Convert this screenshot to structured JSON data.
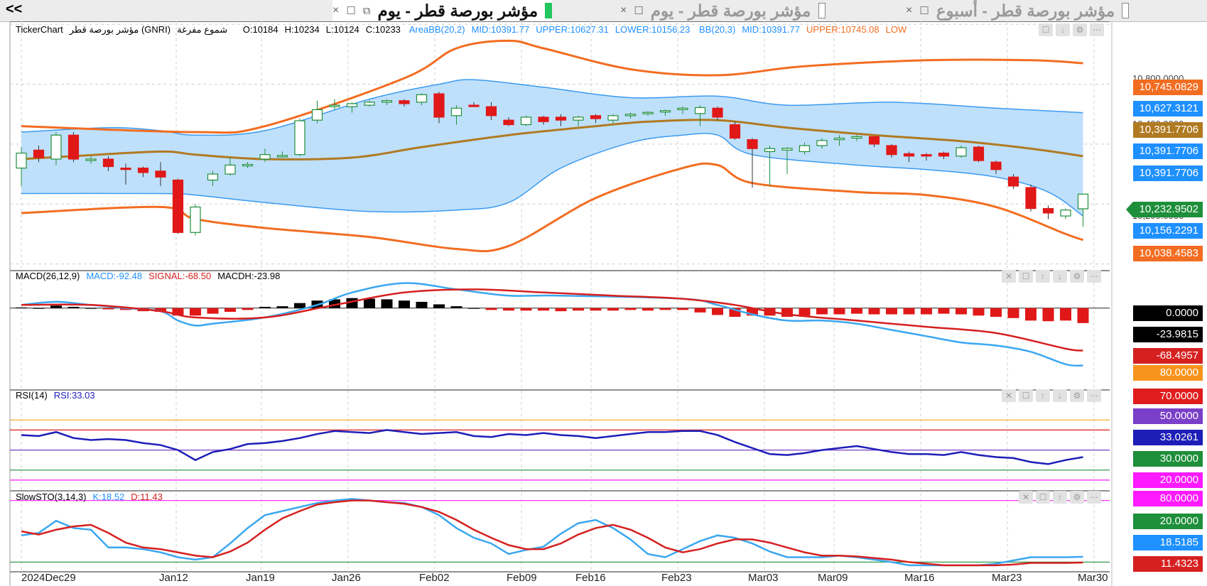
{
  "tabbar": {
    "collapse_label": "<<",
    "tabs": [
      {
        "label": "مؤشر بورصة قطر - يوم",
        "active": true
      },
      {
        "label": "مؤشر بورصة قطر - يوم",
        "active": false
      },
      {
        "label": "مؤشر بورصة قطر - أسبوع",
        "active": false
      }
    ]
  },
  "price_panel": {
    "header": {
      "brand": "TickerChart",
      "symbol": "مؤشر بورصة قطر (GNRI)",
      "chart_type": "شموع مفرغة",
      "ohlc": [
        "O:10184",
        "H:10234",
        "L:10124",
        "C:10233"
      ],
      "areabb": [
        "AreaBB(20,2)",
        "MID:10391.77",
        "UPPER:10627.31",
        "LOWER:10156.23"
      ],
      "bb": [
        "BB(20,3)",
        "MID:10391.77",
        "UPPER:10745.08",
        "LOW"
      ]
    },
    "y_ticks": [
      "10,800.0000",
      "10,400.0000",
      "10,200.0000"
    ],
    "value_labels": [
      {
        "text": "10,745.0829",
        "color": "#f26d21"
      },
      {
        "text": "10,627.3121",
        "color": "#1e90ff"
      },
      {
        "text": "10,391.7706",
        "color": "#b07a22"
      },
      {
        "text": "10,391.7706",
        "color": "#1e90ff"
      },
      {
        "text": "10,391.7706",
        "color": "#1e90ff"
      },
      {
        "text": "10,232.9502",
        "color": "#1e8f3a"
      },
      {
        "text": "10,156.2291",
        "color": "#1e90ff"
      },
      {
        "text": "10,038.4583",
        "color": "#f26d21"
      }
    ]
  },
  "macd_panel": {
    "header": [
      {
        "text": "MACD(26,12,9)",
        "color": "#000000"
      },
      {
        "text": "MACD:-92.48",
        "color": "#1e90ff"
      },
      {
        "text": "SIGNAL:-68.50",
        "color": "#d62020"
      },
      {
        "text": "MACDH:-23.98",
        "color": "#000000"
      }
    ],
    "value_labels": [
      {
        "text": "0.0000",
        "color": "#000000"
      },
      {
        "text": "-23.9815",
        "color": "#000000"
      },
      {
        "text": "-68.4957",
        "color": "#d62020"
      },
      {
        "text": "80.0000",
        "color": "#f7941d"
      }
    ]
  },
  "rsi_panel": {
    "header": [
      {
        "text": "RSI(14)",
        "color": "#000000"
      },
      {
        "text": "RSI:33.03",
        "color": "#1d1db8"
      }
    ],
    "value_labels": [
      {
        "text": "70.0000",
        "color": "#e01d1d"
      },
      {
        "text": "50.0000",
        "color": "#7a3fc8"
      },
      {
        "text": "33.0261",
        "color": "#1d1db8"
      },
      {
        "text": "30.0000",
        "color": "#1e8f3a"
      },
      {
        "text": "20.0000",
        "color": "#ff1aff"
      }
    ]
  },
  "sto_panel": {
    "header": [
      {
        "text": "SlowSTO(3,14,3)",
        "color": "#000000"
      },
      {
        "text": "K:18.52",
        "color": "#1e90ff"
      },
      {
        "text": "D:11.43",
        "color": "#d62020"
      }
    ],
    "value_labels": [
      {
        "text": "80.0000",
        "color": "#ff1aff"
      },
      {
        "text": "20.0000",
        "color": "#1e8f3a"
      },
      {
        "text": "18.5185",
        "color": "#1e90ff"
      },
      {
        "text": "11.4323",
        "color": "#d62020"
      }
    ]
  },
  "x_axis": {
    "labels": [
      "2024Dec29",
      "Jan12",
      "Jan19",
      "Jan26",
      "Feb02",
      "Feb09",
      "Feb16",
      "Feb23",
      "Mar03",
      "Mar09",
      "Mar16",
      "Mar23",
      "Mar30"
    ]
  },
  "panel_controls": [
    "close-icon",
    "restore-icon",
    "move-up-icon",
    "move-down-icon",
    "settings-icon",
    "more-icon"
  ],
  "chart_data": {
    "type": "candlestick",
    "ohlc": [
      {
        "o": 10320,
        "h": 10390,
        "l": 10260,
        "c": 10370
      },
      {
        "o": 10380,
        "h": 10395,
        "l": 10340,
        "c": 10355
      },
      {
        "o": 10350,
        "h": 10440,
        "l": 10330,
        "c": 10430
      },
      {
        "o": 10430,
        "h": 10440,
        "l": 10340,
        "c": 10350
      },
      {
        "o": 10350,
        "h": 10360,
        "l": 10335,
        "c": 10350
      },
      {
        "o": 10350,
        "h": 10360,
        "l": 10310,
        "c": 10325
      },
      {
        "o": 10320,
        "h": 10335,
        "l": 10265,
        "c": 10318
      },
      {
        "o": 10320,
        "h": 10325,
        "l": 10290,
        "c": 10305
      },
      {
        "o": 10310,
        "h": 10340,
        "l": 10260,
        "c": 10290
      },
      {
        "o": 10280,
        "h": 10285,
        "l": 10100,
        "c": 10105
      },
      {
        "o": 10105,
        "h": 10200,
        "l": 10095,
        "c": 10190
      },
      {
        "o": 10280,
        "h": 10310,
        "l": 10260,
        "c": 10300
      },
      {
        "o": 10300,
        "h": 10355,
        "l": 10295,
        "c": 10330
      },
      {
        "o": 10330,
        "h": 10340,
        "l": 10320,
        "c": 10332
      },
      {
        "o": 10350,
        "h": 10385,
        "l": 10340,
        "c": 10365
      },
      {
        "o": 10360,
        "h": 10375,
        "l": 10355,
        "c": 10362
      },
      {
        "o": 10365,
        "h": 10485,
        "l": 10360,
        "c": 10478
      },
      {
        "o": 10480,
        "h": 10545,
        "l": 10470,
        "c": 10515
      },
      {
        "o": 10525,
        "h": 10550,
        "l": 10515,
        "c": 10530
      },
      {
        "o": 10525,
        "h": 10540,
        "l": 10505,
        "c": 10535
      },
      {
        "o": 10530,
        "h": 10545,
        "l": 10525,
        "c": 10540
      },
      {
        "o": 10540,
        "h": 10550,
        "l": 10530,
        "c": 10545
      },
      {
        "o": 10545,
        "h": 10550,
        "l": 10525,
        "c": 10535
      },
      {
        "o": 10540,
        "h": 10570,
        "l": 10530,
        "c": 10565
      },
      {
        "o": 10568,
        "h": 10575,
        "l": 10470,
        "c": 10490
      },
      {
        "o": 10495,
        "h": 10530,
        "l": 10465,
        "c": 10520
      },
      {
        "o": 10530,
        "h": 10540,
        "l": 10525,
        "c": 10528
      },
      {
        "o": 10525,
        "h": 10540,
        "l": 10480,
        "c": 10495
      },
      {
        "o": 10480,
        "h": 10490,
        "l": 10460,
        "c": 10465
      },
      {
        "o": 10465,
        "h": 10495,
        "l": 10460,
        "c": 10490
      },
      {
        "o": 10490,
        "h": 10495,
        "l": 10465,
        "c": 10475
      },
      {
        "o": 10490,
        "h": 10500,
        "l": 10460,
        "c": 10480
      },
      {
        "o": 10480,
        "h": 10495,
        "l": 10460,
        "c": 10490
      },
      {
        "o": 10495,
        "h": 10500,
        "l": 10470,
        "c": 10485
      },
      {
        "o": 10480,
        "h": 10500,
        "l": 10470,
        "c": 10495
      },
      {
        "o": 10495,
        "h": 10505,
        "l": 10485,
        "c": 10500
      },
      {
        "o": 10505,
        "h": 10510,
        "l": 10495,
        "c": 10506
      },
      {
        "o": 10508,
        "h": 10515,
        "l": 10495,
        "c": 10512
      },
      {
        "o": 10515,
        "h": 10525,
        "l": 10500,
        "c": 10520
      },
      {
        "o": 10502,
        "h": 10530,
        "l": 10460,
        "c": 10522
      },
      {
        "o": 10520,
        "h": 10525,
        "l": 10480,
        "c": 10490
      },
      {
        "o": 10465,
        "h": 10475,
        "l": 10415,
        "c": 10420
      },
      {
        "o": 10415,
        "h": 10420,
        "l": 10255,
        "c": 10385
      },
      {
        "o": 10375,
        "h": 10395,
        "l": 10260,
        "c": 10385
      },
      {
        "o": 10380,
        "h": 10390,
        "l": 10300,
        "c": 10386
      },
      {
        "o": 10375,
        "h": 10405,
        "l": 10365,
        "c": 10395
      },
      {
        "o": 10395,
        "h": 10420,
        "l": 10385,
        "c": 10412
      },
      {
        "o": 10415,
        "h": 10430,
        "l": 10395,
        "c": 10420
      },
      {
        "o": 10420,
        "h": 10430,
        "l": 10410,
        "c": 10425
      },
      {
        "o": 10425,
        "h": 10425,
        "l": 10390,
        "c": 10400
      },
      {
        "o": 10395,
        "h": 10400,
        "l": 10355,
        "c": 10365
      },
      {
        "o": 10368,
        "h": 10375,
        "l": 10340,
        "c": 10360
      },
      {
        "o": 10365,
        "h": 10370,
        "l": 10345,
        "c": 10360
      },
      {
        "o": 10370,
        "h": 10375,
        "l": 10350,
        "c": 10360
      },
      {
        "o": 10360,
        "h": 10395,
        "l": 10355,
        "c": 10388
      },
      {
        "o": 10390,
        "h": 10395,
        "l": 10340,
        "c": 10345
      },
      {
        "o": 10340,
        "h": 10345,
        "l": 10300,
        "c": 10315
      },
      {
        "o": 10290,
        "h": 10300,
        "l": 10250,
        "c": 10260
      },
      {
        "o": 10255,
        "h": 10265,
        "l": 10175,
        "c": 10185
      },
      {
        "o": 10185,
        "h": 10195,
        "l": 10150,
        "c": 10170
      },
      {
        "o": 10160,
        "h": 10185,
        "l": 10150,
        "c": 10180
      },
      {
        "o": 10184,
        "h": 10234,
        "l": 10124,
        "c": 10233
      }
    ],
    "bb3": {
      "upper_pts": [
        [
          0,
          10460
        ],
        [
          10,
          10440
        ],
        [
          14,
          10460
        ],
        [
          22,
          10620
        ],
        [
          25,
          10720
        ],
        [
          28,
          10745
        ],
        [
          30,
          10720
        ],
        [
          35,
          10650
        ],
        [
          40,
          10630
        ],
        [
          45,
          10660
        ],
        [
          52,
          10680
        ],
        [
          58,
          10680
        ],
        [
          61,
          10670
        ]
      ],
      "lower_pts": [
        [
          0,
          10170
        ],
        [
          8,
          10190
        ],
        [
          10,
          10150
        ],
        [
          14,
          10120
        ],
        [
          20,
          10090
        ],
        [
          25,
          10050
        ],
        [
          28,
          10060
        ],
        [
          33,
          10220
        ],
        [
          38,
          10320
        ],
        [
          40,
          10330
        ],
        [
          42,
          10270
        ],
        [
          48,
          10240
        ],
        [
          52,
          10230
        ],
        [
          56,
          10190
        ],
        [
          60,
          10100
        ],
        [
          61,
          10080
        ]
      ]
    },
    "area_bb": {
      "upper_pts": [
        [
          0,
          10440
        ],
        [
          5,
          10455
        ],
        [
          8,
          10445
        ],
        [
          10,
          10430
        ],
        [
          14,
          10445
        ],
        [
          20,
          10550
        ],
        [
          24,
          10600
        ],
        [
          26,
          10615
        ],
        [
          30,
          10590
        ],
        [
          35,
          10555
        ],
        [
          40,
          10560
        ],
        [
          44,
          10530
        ],
        [
          50,
          10540
        ],
        [
          56,
          10520
        ],
        [
          61,
          10505
        ]
      ],
      "lower_pts": [
        [
          0,
          10235
        ],
        [
          8,
          10235
        ],
        [
          10,
          10230
        ],
        [
          14,
          10205
        ],
        [
          20,
          10175
        ],
        [
          25,
          10180
        ],
        [
          28,
          10205
        ],
        [
          31,
          10320
        ],
        [
          35,
          10405
        ],
        [
          38,
          10430
        ],
        [
          40,
          10430
        ],
        [
          42,
          10365
        ],
        [
          48,
          10330
        ],
        [
          52,
          10315
        ],
        [
          56,
          10290
        ],
        [
          59,
          10240
        ],
        [
          61,
          10160
        ]
      ]
    },
    "mid_pts": [
      [
        0,
        10350
      ],
      [
        3,
        10360
      ],
      [
        8,
        10375
      ],
      [
        10,
        10365
      ],
      [
        14,
        10350
      ],
      [
        19,
        10355
      ],
      [
        23,
        10390
      ],
      [
        28,
        10430
      ],
      [
        33,
        10460
      ],
      [
        36,
        10475
      ],
      [
        40,
        10480
      ],
      [
        44,
        10455
      ],
      [
        49,
        10430
      ],
      [
        54,
        10410
      ],
      [
        58,
        10385
      ],
      [
        61,
        10360
      ]
    ],
    "macd": {
      "macd_pts": [
        [
          0,
          5
        ],
        [
          2,
          10
        ],
        [
          4,
          5
        ],
        [
          6,
          0
        ],
        [
          8,
          -5
        ],
        [
          9,
          -20
        ],
        [
          10,
          -28
        ],
        [
          11,
          -25
        ],
        [
          14,
          -15
        ],
        [
          17,
          5
        ],
        [
          19,
          25
        ],
        [
          22,
          40
        ],
        [
          25,
          30
        ],
        [
          28,
          20
        ],
        [
          31,
          20
        ],
        [
          38,
          15
        ],
        [
          40,
          5
        ],
        [
          42,
          -10
        ],
        [
          44,
          -20
        ],
        [
          46,
          -20
        ],
        [
          48,
          -25
        ],
        [
          50,
          -35
        ],
        [
          52,
          -45
        ],
        [
          54,
          -55
        ],
        [
          56,
          -60
        ],
        [
          58,
          -70
        ],
        [
          60,
          -90
        ],
        [
          61,
          -92
        ]
      ],
      "signal_pts": [
        [
          0,
          5
        ],
        [
          4,
          5
        ],
        [
          8,
          -5
        ],
        [
          10,
          -15
        ],
        [
          14,
          -15
        ],
        [
          18,
          5
        ],
        [
          22,
          25
        ],
        [
          26,
          30
        ],
        [
          30,
          25
        ],
        [
          34,
          20
        ],
        [
          38,
          15
        ],
        [
          41,
          5
        ],
        [
          44,
          -10
        ],
        [
          48,
          -20
        ],
        [
          52,
          -30
        ],
        [
          56,
          -40
        ],
        [
          60,
          -65
        ],
        [
          61,
          -68
        ]
      ],
      "hist_values": [
        1,
        0,
        4,
        2,
        0,
        -2,
        -3,
        -5,
        -6,
        -12,
        -12,
        -9,
        -6,
        -3,
        2,
        3,
        8,
        12,
        14,
        16,
        15,
        14,
        12,
        10,
        6,
        3,
        0,
        -3,
        -4,
        -4,
        -4,
        -5,
        -4,
        -4,
        -4,
        -3,
        -4,
        -3,
        -3,
        -7,
        -11,
        -14,
        -12,
        -12,
        -14,
        -12,
        -10,
        -10,
        -9,
        -10,
        -10,
        -10,
        -10,
        -9,
        -10,
        -12,
        -14,
        -16,
        -20,
        -21,
        -20,
        -24
      ]
    },
    "rsi": {
      "values": [
        55,
        54,
        58,
        52,
        50,
        51,
        50,
        47,
        45,
        40,
        30,
        38,
        41,
        46,
        47,
        49,
        52,
        56,
        59,
        58,
        57,
        60,
        58,
        56,
        57,
        58,
        54,
        53,
        56,
        55,
        57,
        55,
        54,
        52,
        54,
        56,
        58,
        58,
        59,
        59,
        55,
        48,
        42,
        36,
        35,
        37,
        40,
        42,
        44,
        41,
        38,
        36,
        36,
        35,
        38,
        35,
        33,
        32,
        28,
        26,
        30,
        33
      ]
    },
    "sto": {
      "k_values": [
        45,
        48,
        63,
        54,
        52,
        30,
        30,
        28,
        24,
        18,
        15,
        18,
        35,
        54,
        70,
        75,
        80,
        85,
        88,
        90,
        88,
        86,
        85,
        80,
        70,
        54,
        42,
        35,
        22,
        27,
        31,
        47,
        60,
        64,
        54,
        40,
        22,
        18,
        28,
        38,
        45,
        42,
        35,
        25,
        18,
        18,
        18,
        20,
        18,
        15,
        12,
        8,
        8,
        8,
        8,
        8,
        10,
        14,
        18,
        18,
        18,
        18.52
      ],
      "d_values": [
        50,
        46,
        52,
        56,
        58,
        48,
        36,
        30,
        28,
        24,
        20,
        18,
        25,
        36,
        52,
        66,
        75,
        83,
        86,
        88,
        88,
        86,
        84,
        80,
        74,
        64,
        52,
        42,
        33,
        28,
        28,
        35,
        46,
        54,
        58,
        52,
        42,
        30,
        24,
        28,
        35,
        40,
        40,
        36,
        30,
        24,
        20,
        20,
        19,
        17,
        15,
        12,
        10,
        8,
        8,
        8,
        8,
        9,
        11,
        11,
        11,
        11.43
      ]
    },
    "axes": {
      "price_ylim": [
        9980,
        10810
      ],
      "macd_ylim": [
        -130,
        60
      ],
      "rsi_ylim": [
        0,
        100
      ],
      "sto_ylim": [
        0,
        100
      ]
    }
  }
}
